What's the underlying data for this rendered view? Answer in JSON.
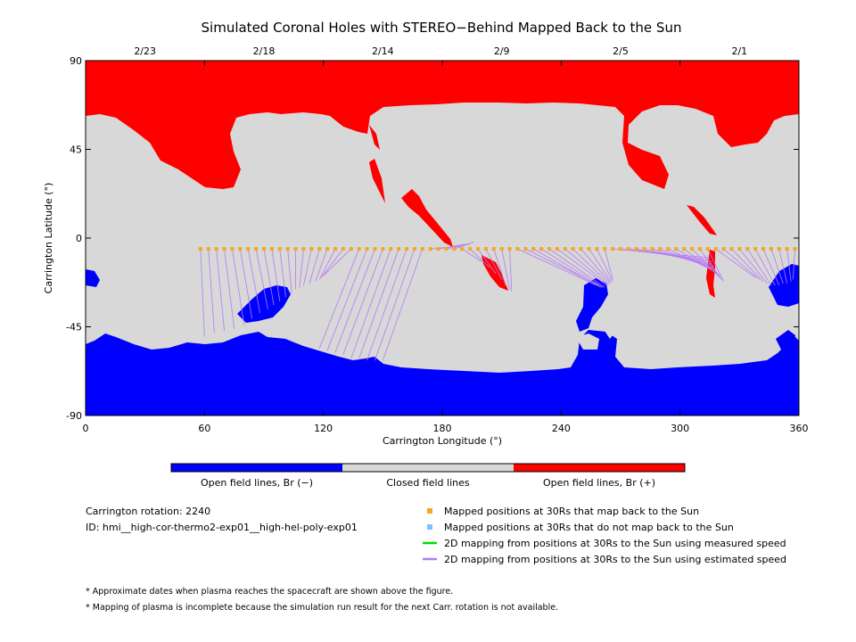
{
  "chart_data": {
    "type": "heatmap",
    "title": "Simulated Coronal Holes with STEREO−Behind Mapped Back to the Sun",
    "xlabel": "Carrington Longitude (°)",
    "ylabel": "Carrington Latitude (°)",
    "xlim": [
      0,
      360
    ],
    "ylim": [
      -90,
      90
    ],
    "x_ticks": [
      0,
      60,
      120,
      180,
      240,
      300,
      360
    ],
    "y_ticks": [
      90,
      45,
      0,
      -45,
      -90
    ],
    "top_date_ticks": [
      {
        "label": "2/23",
        "lon": 30
      },
      {
        "label": "2/18",
        "lon": 90
      },
      {
        "label": "2/14",
        "lon": 150
      },
      {
        "label": "2/9",
        "lon": 210
      },
      {
        "label": "2/5",
        "lon": 270
      },
      {
        "label": "2/1",
        "lon": 330
      }
    ],
    "colorbar": [
      {
        "label": "Open field lines, Br (−)",
        "color": "#0000ff"
      },
      {
        "label": "Closed field lines",
        "color": "#d8d8d8"
      },
      {
        "label": "Open field lines, Br (+)",
        "color": "#ff0000"
      }
    ],
    "series": [
      {
        "name": "Mapped positions at 30Rs that map back to the Sun",
        "color": "#f5a623",
        "marker": "square",
        "lon_range": [
          58,
          358
        ],
        "lat": -5.5
      }
    ],
    "mappings": [
      {
        "from_lon": 58,
        "to": [
          60,
          -50
        ]
      },
      {
        "from_lon": 62,
        "to": [
          65,
          -48
        ]
      },
      {
        "from_lon": 66,
        "to": [
          70,
          -47
        ]
      },
      {
        "from_lon": 70,
        "to": [
          75,
          -46
        ]
      },
      {
        "from_lon": 74,
        "to": [
          80,
          -44
        ]
      },
      {
        "from_lon": 78,
        "to": [
          84,
          -41
        ]
      },
      {
        "from_lon": 82,
        "to": [
          88,
          -38
        ]
      },
      {
        "from_lon": 86,
        "to": [
          92,
          -36
        ]
      },
      {
        "from_lon": 90,
        "to": [
          95,
          -34
        ]
      },
      {
        "from_lon": 94,
        "to": [
          98,
          -32
        ]
      },
      {
        "from_lon": 98,
        "to": [
          101,
          -30
        ]
      },
      {
        "from_lon": 102,
        "to": [
          104,
          -28
        ]
      },
      {
        "from_lon": 106,
        "to": [
          106,
          -26
        ]
      },
      {
        "from_lon": 110,
        "to": [
          108,
          -25
        ]
      },
      {
        "from_lon": 114,
        "to": [
          110,
          -24
        ]
      },
      {
        "from_lon": 118,
        "to": [
          113,
          -23
        ]
      },
      {
        "from_lon": 122,
        "to": [
          116,
          -22
        ]
      },
      {
        "from_lon": 126,
        "to": [
          118,
          -21
        ]
      },
      {
        "from_lon": 130,
        "to": [
          119,
          -20
        ]
      },
      {
        "from_lon": 134,
        "to": [
          120,
          -19
        ]
      },
      {
        "from_lon": 138,
        "to": [
          118,
          -56
        ]
      },
      {
        "from_lon": 142,
        "to": [
          122,
          -57
        ]
      },
      {
        "from_lon": 146,
        "to": [
          126,
          -58
        ]
      },
      {
        "from_lon": 150,
        "to": [
          130,
          -59
        ]
      },
      {
        "from_lon": 154,
        "to": [
          134,
          -61
        ]
      },
      {
        "from_lon": 158,
        "to": [
          138,
          -61
        ]
      },
      {
        "from_lon": 162,
        "to": [
          142,
          -62
        ]
      },
      {
        "from_lon": 166,
        "to": [
          146,
          -62
        ]
      },
      {
        "from_lon": 170,
        "to": [
          150,
          -62
        ]
      },
      {
        "from_lon": 174,
        "to": [
          190,
          -4
        ]
      },
      {
        "from_lon": 178,
        "to": [
          192,
          -3
        ]
      },
      {
        "from_lon": 182,
        "to": [
          194,
          -3
        ]
      },
      {
        "from_lon": 186,
        "to": [
          196,
          -2
        ]
      },
      {
        "from_lon": 190,
        "to": [
          200,
          -12
        ]
      },
      {
        "from_lon": 194,
        "to": [
          204,
          -15
        ]
      },
      {
        "from_lon": 198,
        "to": [
          207,
          -18
        ]
      },
      {
        "from_lon": 202,
        "to": [
          210,
          -21
        ]
      },
      {
        "from_lon": 206,
        "to": [
          212,
          -24
        ]
      },
      {
        "from_lon": 210,
        "to": [
          214,
          -26
        ]
      },
      {
        "from_lon": 214,
        "to": [
          215,
          -27
        ]
      },
      {
        "from_lon": 218,
        "to": [
          258,
          -24
        ]
      },
      {
        "from_lon": 222,
        "to": [
          259,
          -24
        ]
      },
      {
        "from_lon": 226,
        "to": [
          260,
          -25
        ]
      },
      {
        "from_lon": 230,
        "to": [
          261,
          -25
        ]
      },
      {
        "from_lon": 234,
        "to": [
          262,
          -25
        ]
      },
      {
        "from_lon": 238,
        "to": [
          263,
          -24
        ]
      },
      {
        "from_lon": 242,
        "to": [
          264,
          -24
        ]
      },
      {
        "from_lon": 246,
        "to": [
          264,
          -23
        ]
      },
      {
        "from_lon": 250,
        "to": [
          265,
          -23
        ]
      },
      {
        "from_lon": 254,
        "to": [
          265,
          -22
        ]
      },
      {
        "from_lon": 258,
        "to": [
          266,
          -22
        ]
      },
      {
        "from_lon": 262,
        "to": [
          266,
          -21
        ]
      },
      {
        "from_lon": 266,
        "to": [
          315,
          -10
        ]
      },
      {
        "from_lon": 270,
        "to": [
          315,
          -11
        ]
      },
      {
        "from_lon": 274,
        "to": [
          316,
          -12
        ]
      },
      {
        "from_lon": 278,
        "to": [
          316,
          -13
        ]
      },
      {
        "from_lon": 282,
        "to": [
          317,
          -14
        ]
      },
      {
        "from_lon": 286,
        "to": [
          317,
          -15
        ]
      },
      {
        "from_lon": 290,
        "to": [
          318,
          -16
        ]
      },
      {
        "from_lon": 294,
        "to": [
          318,
          -17
        ]
      },
      {
        "from_lon": 298,
        "to": [
          319,
          -18
        ]
      },
      {
        "from_lon": 302,
        "to": [
          320,
          -19
        ]
      },
      {
        "from_lon": 306,
        "to": [
          320,
          -20
        ]
      },
      {
        "from_lon": 310,
        "to": [
          321,
          -21
        ]
      },
      {
        "from_lon": 314,
        "to": [
          322,
          -22
        ]
      },
      {
        "from_lon": 318,
        "to": [
          338,
          -20
        ]
      },
      {
        "from_lon": 322,
        "to": [
          340,
          -21
        ]
      },
      {
        "from_lon": 326,
        "to": [
          342,
          -22
        ]
      },
      {
        "from_lon": 330,
        "to": [
          344,
          -23
        ]
      },
      {
        "from_lon": 334,
        "to": [
          346,
          -24
        ]
      },
      {
        "from_lon": 338,
        "to": [
          348,
          -24
        ]
      },
      {
        "from_lon": 342,
        "to": [
          350,
          -24
        ]
      },
      {
        "from_lon": 346,
        "to": [
          352,
          -23
        ]
      },
      {
        "from_lon": 350,
        "to": [
          354,
          -23
        ]
      },
      {
        "from_lon": 354,
        "to": [
          356,
          -22
        ]
      },
      {
        "from_lon": 358,
        "to": [
          357,
          -21
        ]
      }
    ]
  },
  "legend": [
    {
      "label": "Mapped positions at 30Rs that map back to the Sun",
      "color": "#f5a623",
      "kind": "square"
    },
    {
      "label": "Mapped positions at 30Rs that do not map back to the Sun",
      "color": "#7fbfff",
      "kind": "square"
    },
    {
      "label": "2D mapping from positions at 30Rs to the Sun using measured speed",
      "color": "#00dd00",
      "kind": "line"
    },
    {
      "label": "2D mapping from positions at 30Rs to the Sun using estimated speed",
      "color": "#b57bf5",
      "kind": "line"
    }
  ],
  "info": {
    "rotation": "Carrington rotation: 2240",
    "id": "ID: hmi__high-cor-thermo2-exp01__high-hel-poly-exp01"
  },
  "notes": [
    "* Approximate dates when plasma reaches the spacecraft are shown above the figure.",
    "* Mapping of plasma is incomplete because the simulation run result for the next Carr. rotation is not available."
  ]
}
